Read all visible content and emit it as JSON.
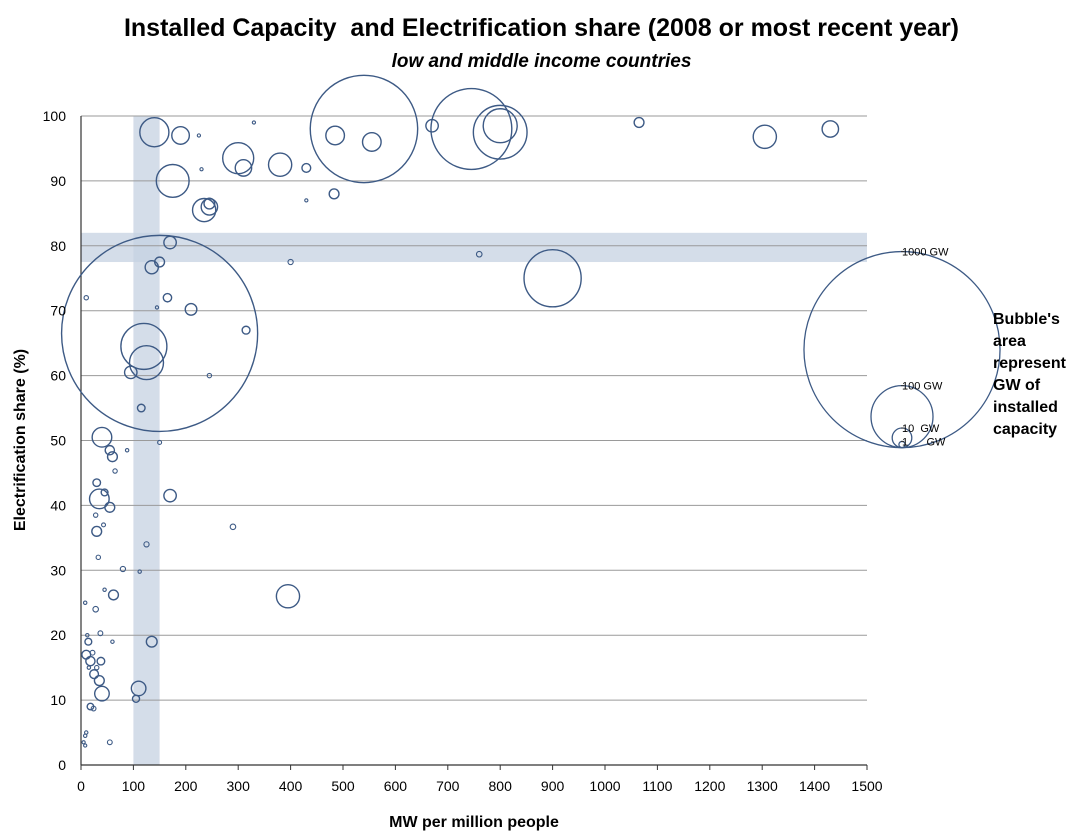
{
  "chart_data": {
    "type": "scatter",
    "subtype": "bubble",
    "title": "Installed Capacity  and Electrification share (2008 or most recent year)",
    "subtitle": "low and middle income countries",
    "xlabel": "MW per million people",
    "ylabel": "Electrification share (%)",
    "xlim": [
      0,
      1500
    ],
    "ylim": [
      0,
      100
    ],
    "x_ticks": [
      0,
      100,
      200,
      300,
      400,
      500,
      600,
      700,
      800,
      900,
      1000,
      1100,
      1200,
      1300,
      1400,
      1500
    ],
    "y_ticks": [
      0,
      10,
      20,
      30,
      40,
      50,
      60,
      70,
      80,
      90,
      100
    ],
    "grid": "horizontal",
    "highlight_bands": {
      "x_range": [
        100,
        150
      ],
      "y_range": [
        77.5,
        82
      ]
    },
    "colors": {
      "bubble": "#3d5a85",
      "band": "#c6d1e1",
      "grid": "#9a9a9a"
    },
    "size_unit": "GW of installed capacity",
    "legend": {
      "placement": "right",
      "note_lines": [
        "Bubble's",
        "area",
        "represent",
        "GW of",
        "installed",
        "capacity"
      ],
      "entries": [
        {
          "label": "1000 GW",
          "gw": 1000
        },
        {
          "label": "100 GW",
          "gw": 100
        },
        {
          "label": "10  GW",
          "gw": 10
        },
        {
          "label": "1      GW",
          "gw": 1
        }
      ]
    },
    "points": [
      {
        "x": 150,
        "y": 66.5,
        "gw": 1000
      },
      {
        "x": 540,
        "y": 98,
        "gw": 300
      },
      {
        "x": 745,
        "y": 98,
        "gw": 170
      },
      {
        "x": 900,
        "y": 75,
        "gw": 85
      },
      {
        "x": 800,
        "y": 97.5,
        "gw": 75
      },
      {
        "x": 800,
        "y": 98.5,
        "gw": 30
      },
      {
        "x": 120,
        "y": 64.5,
        "gw": 55
      },
      {
        "x": 125,
        "y": 62,
        "gw": 30
      },
      {
        "x": 140,
        "y": 97.5,
        "gw": 22
      },
      {
        "x": 175,
        "y": 90,
        "gw": 28
      },
      {
        "x": 300,
        "y": 93.5,
        "gw": 25
      },
      {
        "x": 380,
        "y": 92.5,
        "gw": 14
      },
      {
        "x": 1305,
        "y": 96.8,
        "gw": 14
      },
      {
        "x": 395,
        "y": 26,
        "gw": 14
      },
      {
        "x": 235,
        "y": 85.5,
        "gw": 14
      },
      {
        "x": 245,
        "y": 86,
        "gw": 7
      },
      {
        "x": 245,
        "y": 86.5,
        "gw": 3
      },
      {
        "x": 190,
        "y": 97,
        "gw": 8
      },
      {
        "x": 310,
        "y": 92,
        "gw": 7
      },
      {
        "x": 485,
        "y": 97,
        "gw": 9
      },
      {
        "x": 555,
        "y": 96,
        "gw": 9
      },
      {
        "x": 1430,
        "y": 98,
        "gw": 7
      },
      {
        "x": 670,
        "y": 98.5,
        "gw": 4
      },
      {
        "x": 1065,
        "y": 99,
        "gw": 2.5
      },
      {
        "x": 483,
        "y": 88,
        "gw": 2.5
      },
      {
        "x": 430,
        "y": 92,
        "gw": 2
      },
      {
        "x": 225,
        "y": 97,
        "gw": 0.2
      },
      {
        "x": 330,
        "y": 99,
        "gw": 0.2
      },
      {
        "x": 170,
        "y": 80.5,
        "gw": 4
      },
      {
        "x": 135,
        "y": 76.7,
        "gw": 4.5
      },
      {
        "x": 150,
        "y": 77.5,
        "gw": 2.5
      },
      {
        "x": 400,
        "y": 77.5,
        "gw": 0.7
      },
      {
        "x": 760,
        "y": 78.7,
        "gw": 0.8
      },
      {
        "x": 165,
        "y": 72,
        "gw": 1.8
      },
      {
        "x": 210,
        "y": 70.2,
        "gw": 3.5
      },
      {
        "x": 315,
        "y": 67,
        "gw": 1.6
      },
      {
        "x": 10,
        "y": 72,
        "gw": 0.5
      },
      {
        "x": 145,
        "y": 70.5,
        "gw": 0.2
      },
      {
        "x": 95,
        "y": 60.5,
        "gw": 4
      },
      {
        "x": 245,
        "y": 60,
        "gw": 0.5
      },
      {
        "x": 115,
        "y": 55,
        "gw": 1.5
      },
      {
        "x": 40,
        "y": 50.5,
        "gw": 10
      },
      {
        "x": 55,
        "y": 48.5,
        "gw": 2.2
      },
      {
        "x": 60,
        "y": 47.5,
        "gw": 2.5
      },
      {
        "x": 65,
        "y": 45.3,
        "gw": 0.5
      },
      {
        "x": 88,
        "y": 48.5,
        "gw": 0.3
      },
      {
        "x": 150,
        "y": 49.7,
        "gw": 0.4
      },
      {
        "x": 35,
        "y": 41,
        "gw": 10
      },
      {
        "x": 30,
        "y": 43.5,
        "gw": 1.5
      },
      {
        "x": 45,
        "y": 42,
        "gw": 1.2
      },
      {
        "x": 55,
        "y": 39.7,
        "gw": 2.5
      },
      {
        "x": 28,
        "y": 38.5,
        "gw": 0.5
      },
      {
        "x": 30,
        "y": 36,
        "gw": 2.5
      },
      {
        "x": 170,
        "y": 41.5,
        "gw": 4
      },
      {
        "x": 290,
        "y": 36.7,
        "gw": 0.8
      },
      {
        "x": 43,
        "y": 37,
        "gw": 0.4
      },
      {
        "x": 125,
        "y": 34,
        "gw": 0.7
      },
      {
        "x": 33,
        "y": 32,
        "gw": 0.5
      },
      {
        "x": 80,
        "y": 30.2,
        "gw": 0.7
      },
      {
        "x": 112,
        "y": 29.8,
        "gw": 0.3
      },
      {
        "x": 45,
        "y": 27,
        "gw": 0.3
      },
      {
        "x": 62,
        "y": 26.2,
        "gw": 2.5
      },
      {
        "x": 28,
        "y": 24,
        "gw": 0.8
      },
      {
        "x": 8,
        "y": 25,
        "gw": 0.3
      },
      {
        "x": 135,
        "y": 19,
        "gw": 3
      },
      {
        "x": 37,
        "y": 20.3,
        "gw": 0.6
      },
      {
        "x": 14,
        "y": 19,
        "gw": 1.2
      },
      {
        "x": 12,
        "y": 20,
        "gw": 0.3
      },
      {
        "x": 60,
        "y": 19,
        "gw": 0.3
      },
      {
        "x": 10,
        "y": 17,
        "gw": 2
      },
      {
        "x": 22,
        "y": 17.3,
        "gw": 0.6
      },
      {
        "x": 18,
        "y": 16,
        "gw": 2.2
      },
      {
        "x": 38,
        "y": 16,
        "gw": 1.5
      },
      {
        "x": 15,
        "y": 15,
        "gw": 0.3
      },
      {
        "x": 30,
        "y": 15,
        "gw": 0.5
      },
      {
        "x": 25,
        "y": 14,
        "gw": 2
      },
      {
        "x": 35,
        "y": 13,
        "gw": 2.5
      },
      {
        "x": 40,
        "y": 11,
        "gw": 5.5
      },
      {
        "x": 110,
        "y": 11.8,
        "gw": 5.5
      },
      {
        "x": 105,
        "y": 10.2,
        "gw": 1.3
      },
      {
        "x": 18,
        "y": 9,
        "gw": 1.1
      },
      {
        "x": 24,
        "y": 8.7,
        "gw": 0.6
      },
      {
        "x": 10,
        "y": 5,
        "gw": 0.3
      },
      {
        "x": 8,
        "y": 4.5,
        "gw": 0.3
      },
      {
        "x": 55,
        "y": 3.5,
        "gw": 0.6
      },
      {
        "x": 5,
        "y": 3.5,
        "gw": 0.2
      },
      {
        "x": 8,
        "y": 3,
        "gw": 0.2
      },
      {
        "x": 230,
        "y": 91.8,
        "gw": 0.2
      },
      {
        "x": 430,
        "y": 87,
        "gw": 0.1
      }
    ]
  }
}
